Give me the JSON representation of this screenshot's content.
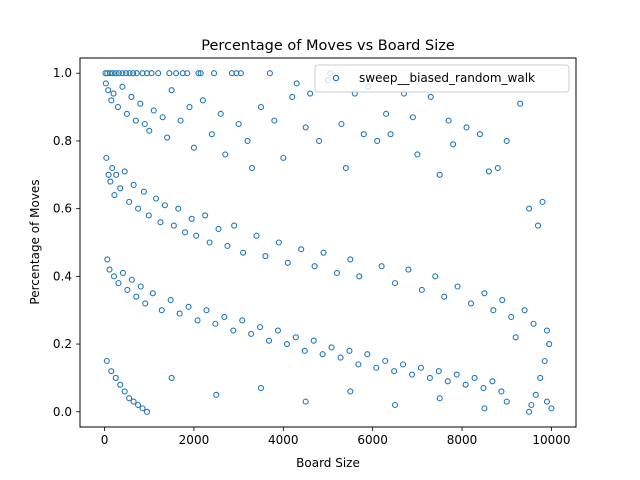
{
  "chart_data": {
    "type": "scatter",
    "title": "Percentage of Moves vs Board Size",
    "xlabel": "Board Size",
    "ylabel": "Percentage of Moves",
    "xlim": [
      -550,
      10550
    ],
    "ylim": [
      -0.045,
      1.045
    ],
    "xticks": [
      0,
      2000,
      4000,
      6000,
      8000,
      10000
    ],
    "xtick_labels": [
      "0",
      "2000",
      "4000",
      "6000",
      "8000",
      "10000"
    ],
    "yticks": [
      0.0,
      0.2,
      0.4,
      0.6,
      0.8,
      1.0
    ],
    "ytick_labels": [
      "0.0",
      "0.2",
      "0.4",
      "0.6",
      "0.8",
      "1.0"
    ],
    "grid": false,
    "legend_position": "top-right",
    "marker": "hollow-circle",
    "series": [
      {
        "name": "sweep__biased_random_walk",
        "color": "#1f77b4",
        "points": [
          [
            20,
            1.0
          ],
          [
            60,
            1.0
          ],
          [
            120,
            1.0
          ],
          [
            180,
            1.0
          ],
          [
            250,
            1.0
          ],
          [
            320,
            1.0
          ],
          [
            400,
            1.0
          ],
          [
            480,
            1.0
          ],
          [
            560,
            1.0
          ],
          [
            640,
            1.0
          ],
          [
            720,
            1.0
          ],
          [
            850,
            1.0
          ],
          [
            950,
            1.0
          ],
          [
            1050,
            1.0
          ],
          [
            1200,
            1.0
          ],
          [
            1450,
            1.0
          ],
          [
            1600,
            1.0
          ],
          [
            1750,
            1.0
          ],
          [
            1850,
            1.0
          ],
          [
            2100,
            1.0
          ],
          [
            2150,
            1.0
          ],
          [
            2450,
            1.0
          ],
          [
            2850,
            1.0
          ],
          [
            2950,
            1.0
          ],
          [
            3050,
            1.0
          ],
          [
            3700,
            1.0
          ],
          [
            5050,
            1.0
          ],
          [
            30,
            0.97
          ],
          [
            80,
            0.95
          ],
          [
            150,
            0.92
          ],
          [
            200,
            0.94
          ],
          [
            300,
            0.9
          ],
          [
            400,
            0.96
          ],
          [
            500,
            0.88
          ],
          [
            600,
            0.93
          ],
          [
            700,
            0.86
          ],
          [
            800,
            0.91
          ],
          [
            900,
            0.85
          ],
          [
            1000,
            0.83
          ],
          [
            1100,
            0.89
          ],
          [
            1300,
            0.87
          ],
          [
            1400,
            0.81
          ],
          [
            1500,
            0.95
          ],
          [
            1700,
            0.86
          ],
          [
            1900,
            0.9
          ],
          [
            2000,
            0.78
          ],
          [
            2200,
            0.92
          ],
          [
            2400,
            0.82
          ],
          [
            2600,
            0.88
          ],
          [
            2700,
            0.76
          ],
          [
            3000,
            0.85
          ],
          [
            3200,
            0.8
          ],
          [
            3300,
            0.72
          ],
          [
            3500,
            0.9
          ],
          [
            3800,
            0.86
          ],
          [
            4000,
            0.75
          ],
          [
            4200,
            0.93
          ],
          [
            4300,
            0.97
          ],
          [
            4500,
            0.84
          ],
          [
            4600,
            0.94
          ],
          [
            4800,
            0.8
          ],
          [
            5000,
            0.98
          ],
          [
            5300,
            0.85
          ],
          [
            5400,
            0.72
          ],
          [
            5600,
            0.94
          ],
          [
            5800,
            0.82
          ],
          [
            5900,
            0.96
          ],
          [
            6000,
            0.99
          ],
          [
            6100,
            0.8
          ],
          [
            6300,
            0.88
          ],
          [
            6400,
            0.82
          ],
          [
            6700,
            0.94
          ],
          [
            6900,
            0.87
          ],
          [
            7000,
            0.76
          ],
          [
            7300,
            0.93
          ],
          [
            7500,
            0.7
          ],
          [
            7700,
            0.86
          ],
          [
            7800,
            0.79
          ],
          [
            8100,
            0.84
          ],
          [
            8400,
            0.82
          ],
          [
            8600,
            0.71
          ],
          [
            8800,
            0.72
          ],
          [
            9000,
            0.8
          ],
          [
            9300,
            0.91
          ],
          [
            9500,
            0.6
          ],
          [
            9700,
            0.55
          ],
          [
            9800,
            0.62
          ],
          [
            40,
            0.75
          ],
          [
            90,
            0.7
          ],
          [
            130,
            0.68
          ],
          [
            170,
            0.72
          ],
          [
            220,
            0.64
          ],
          [
            260,
            0.7
          ],
          [
            350,
            0.66
          ],
          [
            450,
            0.71
          ],
          [
            550,
            0.62
          ],
          [
            650,
            0.67
          ],
          [
            750,
            0.6
          ],
          [
            880,
            0.65
          ],
          [
            990,
            0.58
          ],
          [
            1150,
            0.63
          ],
          [
            1250,
            0.56
          ],
          [
            1350,
            0.61
          ],
          [
            1550,
            0.55
          ],
          [
            1650,
            0.6
          ],
          [
            1800,
            0.53
          ],
          [
            1950,
            0.57
          ],
          [
            2050,
            0.52
          ],
          [
            2250,
            0.58
          ],
          [
            2350,
            0.5
          ],
          [
            2550,
            0.54
          ],
          [
            2750,
            0.49
          ],
          [
            2900,
            0.55
          ],
          [
            3100,
            0.47
          ],
          [
            3400,
            0.52
          ],
          [
            3600,
            0.46
          ],
          [
            3900,
            0.5
          ],
          [
            4100,
            0.44
          ],
          [
            4400,
            0.48
          ],
          [
            4700,
            0.43
          ],
          [
            4900,
            0.47
          ],
          [
            5200,
            0.41
          ],
          [
            5500,
            0.45
          ],
          [
            5700,
            0.4
          ],
          [
            6200,
            0.43
          ],
          [
            6500,
            0.38
          ],
          [
            6800,
            0.42
          ],
          [
            7100,
            0.36
          ],
          [
            7400,
            0.4
          ],
          [
            7600,
            0.34
          ],
          [
            7900,
            0.37
          ],
          [
            8200,
            0.32
          ],
          [
            8500,
            0.35
          ],
          [
            8700,
            0.3
          ],
          [
            8900,
            0.33
          ],
          [
            9100,
            0.28
          ],
          [
            9400,
            0.3
          ],
          [
            9600,
            0.26
          ],
          [
            9900,
            0.24
          ],
          [
            9950,
            0.2
          ],
          [
            9850,
            0.15
          ],
          [
            9750,
            0.1
          ],
          [
            9650,
            0.05
          ],
          [
            9900,
            0.03
          ],
          [
            9550,
            0.02
          ],
          [
            10000,
            0.01
          ],
          [
            9200,
            0.22
          ],
          [
            60,
            0.45
          ],
          [
            110,
            0.42
          ],
          [
            210,
            0.4
          ],
          [
            310,
            0.38
          ],
          [
            410,
            0.41
          ],
          [
            510,
            0.36
          ],
          [
            610,
            0.39
          ],
          [
            710,
            0.34
          ],
          [
            810,
            0.37
          ],
          [
            910,
            0.32
          ],
          [
            1080,
            0.35
          ],
          [
            1280,
            0.3
          ],
          [
            1480,
            0.33
          ],
          [
            1680,
            0.29
          ],
          [
            1880,
            0.31
          ],
          [
            2080,
            0.27
          ],
          [
            2280,
            0.3
          ],
          [
            2480,
            0.26
          ],
          [
            2680,
            0.28
          ],
          [
            2880,
            0.24
          ],
          [
            3080,
            0.27
          ],
          [
            3280,
            0.23
          ],
          [
            3480,
            0.25
          ],
          [
            3680,
            0.21
          ],
          [
            3880,
            0.24
          ],
          [
            4080,
            0.2
          ],
          [
            4280,
            0.22
          ],
          [
            4480,
            0.18
          ],
          [
            4680,
            0.21
          ],
          [
            4880,
            0.17
          ],
          [
            5080,
            0.19
          ],
          [
            5280,
            0.16
          ],
          [
            5480,
            0.18
          ],
          [
            5680,
            0.14
          ],
          [
            5880,
            0.17
          ],
          [
            6080,
            0.13
          ],
          [
            6280,
            0.15
          ],
          [
            6480,
            0.12
          ],
          [
            6680,
            0.14
          ],
          [
            6880,
            0.11
          ],
          [
            7080,
            0.13
          ],
          [
            7280,
            0.1
          ],
          [
            7480,
            0.12
          ],
          [
            7680,
            0.09
          ],
          [
            7880,
            0.11
          ],
          [
            8080,
            0.08
          ],
          [
            8280,
            0.1
          ],
          [
            8480,
            0.07
          ],
          [
            8680,
            0.09
          ],
          [
            8880,
            0.06
          ],
          [
            50,
            0.15
          ],
          [
            150,
            0.12
          ],
          [
            250,
            0.1
          ],
          [
            350,
            0.08
          ],
          [
            450,
            0.06
          ],
          [
            550,
            0.04
          ],
          [
            650,
            0.03
          ],
          [
            750,
            0.02
          ],
          [
            850,
            0.01
          ],
          [
            950,
            0.0
          ],
          [
            1500,
            0.1
          ],
          [
            2500,
            0.05
          ],
          [
            3500,
            0.07
          ],
          [
            4500,
            0.03
          ],
          [
            5500,
            0.06
          ],
          [
            6500,
            0.02
          ],
          [
            7500,
            0.04
          ],
          [
            8500,
            0.01
          ],
          [
            9000,
            0.03
          ],
          [
            9500,
            0.0
          ]
        ]
      }
    ]
  }
}
